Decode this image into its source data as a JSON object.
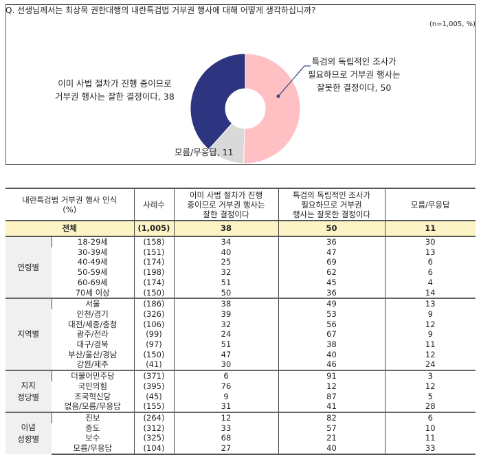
{
  "question": "Q. 선생님께서는 최상목 권한대행의 내란특검법 거부권 행사에 대해 어떻게 생각하십니까?",
  "note": "(n=1,005, %)",
  "colors": {
    "support": "#2d3480",
    "oppose": "#ffc0c4",
    "unknown": "#d9d9d9",
    "total_row": "#fcf4c4",
    "group_cell": "#f0f0f0"
  },
  "chart_data": [
    {
      "type": "pie",
      "donut": true,
      "slices": [
        {
          "label": "특검의 독립적인 조사가 필요하므로 거부권 행사는 잘못한 결정이다, 50",
          "value": 50,
          "color": "#ffc0c4"
        },
        {
          "label": "모름/무응답, 11",
          "value": 11,
          "color": "#d9d9d9"
        },
        {
          "label": "이미 사법 절차가 진행 중이므로 거부권 행사는 잘한 결정이다, 38",
          "value": 38,
          "color": "#2d3480"
        }
      ],
      "label_lines": {
        "oppose": [
          "특검의 독립적인 조사가",
          "필요하므로 거부권 행사는",
          "잘못한 결정이다, 50"
        ],
        "support": [
          "이미 사법 절차가 진행 중이므로",
          "거부권 행사는 잘한 결정이다, 38"
        ],
        "unknown": [
          "모름/무응답, 11"
        ]
      }
    },
    {
      "type": "table",
      "header": {
        "title": [
          "내란특검법 거부권 행사 인식",
          "(%)"
        ],
        "n": "사례수",
        "c1": [
          "이미 사법 절차가 진행",
          "중이므로 거부권 행사는",
          "잘한 결정이다"
        ],
        "c2": [
          "특검의 독립적인 조사가",
          "필요하므로 거부권",
          "행사는 잘못한 결정이다"
        ],
        "c3": "모름/무응답"
      },
      "total": {
        "label": "전체",
        "n": "(1,005)",
        "v": [
          "38",
          "50",
          "11"
        ]
      },
      "groups": [
        {
          "name": [
            "연령별"
          ],
          "rows": [
            [
              "18-29세",
              "(158)",
              "34",
              "36",
              "30"
            ],
            [
              "30-39세",
              "(151)",
              "40",
              "47",
              "13"
            ],
            [
              "40-49세",
              "(174)",
              "25",
              "69",
              "6"
            ],
            [
              "50-59세",
              "(198)",
              "32",
              "62",
              "6"
            ],
            [
              "60-69세",
              "(174)",
              "51",
              "45",
              "4"
            ],
            [
              "70세 이상",
              "(150)",
              "50",
              "36",
              "14"
            ]
          ]
        },
        {
          "name": [
            "지역별"
          ],
          "rows": [
            [
              "서울",
              "(186)",
              "38",
              "49",
              "13"
            ],
            [
              "인천/경기",
              "(326)",
              "39",
              "53",
              "9"
            ],
            [
              "대전/세종/충청",
              "(106)",
              "32",
              "56",
              "12"
            ],
            [
              "광주/전라",
              "(99)",
              "24",
              "67",
              "9"
            ],
            [
              "대구/경북",
              "(97)",
              "51",
              "38",
              "11"
            ],
            [
              "부산/울산/경남",
              "(150)",
              "47",
              "40",
              "12"
            ],
            [
              "강원/제주",
              "(41)",
              "30",
              "46",
              "24"
            ]
          ]
        },
        {
          "name": [
            "지지",
            "정당별"
          ],
          "rows": [
            [
              "더불어민주당",
              "(371)",
              "6",
              "91",
              "3"
            ],
            [
              "국민의힘",
              "(395)",
              "76",
              "12",
              "12"
            ],
            [
              "조국혁신당",
              "(45)",
              "9",
              "87",
              "5"
            ],
            [
              "없음/모름/무응답",
              "(155)",
              "31",
              "41",
              "28"
            ]
          ]
        },
        {
          "name": [
            "이념",
            "성향별"
          ],
          "rows": [
            [
              "진보",
              "(264)",
              "12",
              "82",
              "6"
            ],
            [
              "중도",
              "(312)",
              "33",
              "57",
              "10"
            ],
            [
              "보수",
              "(325)",
              "68",
              "21",
              "11"
            ],
            [
              "모름/무응답",
              "(104)",
              "27",
              "40",
              "33"
            ]
          ]
        }
      ]
    }
  ]
}
